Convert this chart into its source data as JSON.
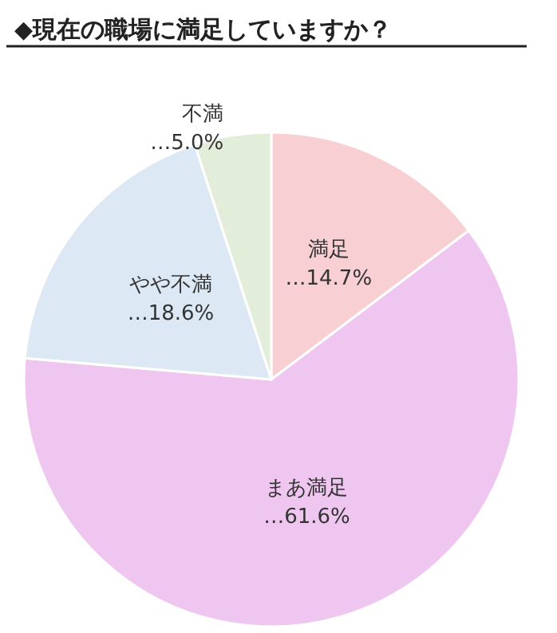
{
  "chart_data": {
    "type": "pie",
    "title": "◆現在の職場に満足していますか？",
    "categories": [
      "満足",
      "まあ満足",
      "やや不満",
      "不満"
    ],
    "values": [
      14.7,
      61.6,
      18.6,
      5.0
    ],
    "value_labels": [
      "…14.7%",
      "…61.6%",
      "…18.6%",
      "…5.0%"
    ],
    "colors": [
      "#f8cfd3",
      "#efc6ef",
      "#dde8f5",
      "#e2eed9"
    ],
    "legend": false
  }
}
